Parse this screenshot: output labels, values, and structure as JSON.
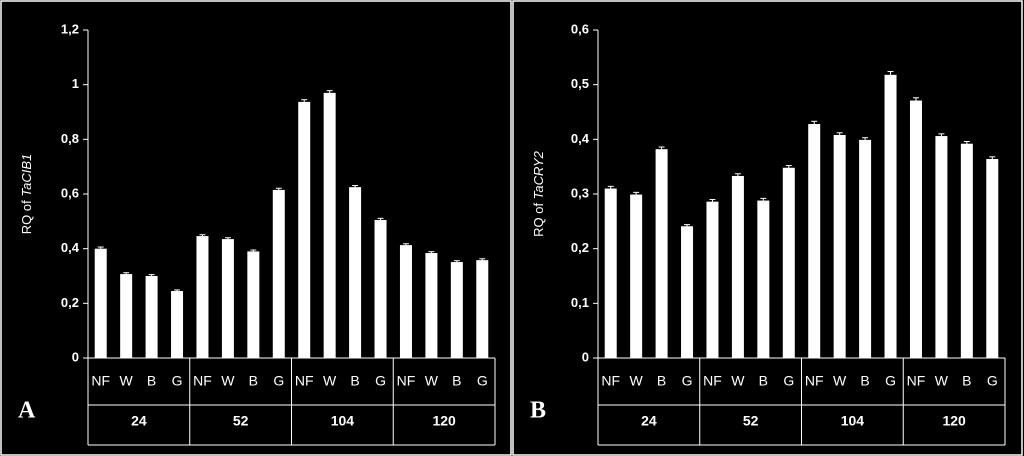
{
  "chart_data": [
    {
      "type": "bar",
      "panel_label": "A",
      "y_label": [
        "RQ of ",
        "TaCIB1"
      ],
      "color": "#ffffff",
      "groups": [
        "24",
        "52",
        "104",
        "120"
      ],
      "categories": [
        "NF",
        "W",
        "B",
        "G",
        "NF",
        "W",
        "B",
        "G",
        "NF",
        "W",
        "B",
        "G",
        "NF",
        "W",
        "B",
        "G"
      ],
      "values": [
        0.4,
        0.307,
        0.3,
        0.245,
        0.446,
        0.435,
        0.39,
        0.615,
        0.937,
        0.97,
        0.625,
        0.505,
        0.413,
        0.384,
        0.351,
        0.358
      ],
      "errors": [
        0.006,
        0.005,
        0.005,
        0.004,
        0.005,
        0.005,
        0.005,
        0.006,
        0.008,
        0.008,
        0.006,
        0.006,
        0.005,
        0.005,
        0.005,
        0.005
      ],
      "ylim": [
        0,
        1.2
      ],
      "yticks": [
        0,
        {
          "value": 0.2,
          "label": "0,2"
        },
        {
          "value": 0.4,
          "label": "0,4"
        },
        {
          "value": 0.6,
          "label": "0,6"
        },
        {
          "value": 0.8,
          "label": "0,8"
        },
        1,
        {
          "value": 1.2,
          "label": "1,2"
        }
      ]
    },
    {
      "type": "bar",
      "panel_label": "B",
      "y_label": [
        "RQ of ",
        "TaCRY2"
      ],
      "color": "#ffffff",
      "groups": [
        "24",
        "52",
        "104",
        "120"
      ],
      "categories": [
        "NF",
        "W",
        "B",
        "G",
        "NF",
        "W",
        "B",
        "G",
        "NF",
        "W",
        "B",
        "G",
        "NF",
        "W",
        "B",
        "G"
      ],
      "values": [
        0.31,
        0.299,
        0.382,
        0.241,
        0.286,
        0.333,
        0.288,
        0.348,
        0.428,
        0.408,
        0.399,
        0.518,
        0.471,
        0.406,
        0.392,
        0.364
      ],
      "errors": [
        0.004,
        0.004,
        0.004,
        0.003,
        0.004,
        0.004,
        0.004,
        0.004,
        0.005,
        0.004,
        0.004,
        0.006,
        0.005,
        0.004,
        0.004,
        0.004
      ],
      "ylim": [
        0,
        0.6
      ],
      "yticks": [
        0,
        {
          "value": 0.1,
          "label": "0,1"
        },
        {
          "value": 0.2,
          "label": "0,2"
        },
        {
          "value": 0.3,
          "label": "0,3"
        },
        {
          "value": 0.4,
          "label": "0,4"
        },
        {
          "value": 0.5,
          "label": "0,5"
        },
        {
          "value": 0.6,
          "label": "0,6"
        }
      ]
    }
  ]
}
